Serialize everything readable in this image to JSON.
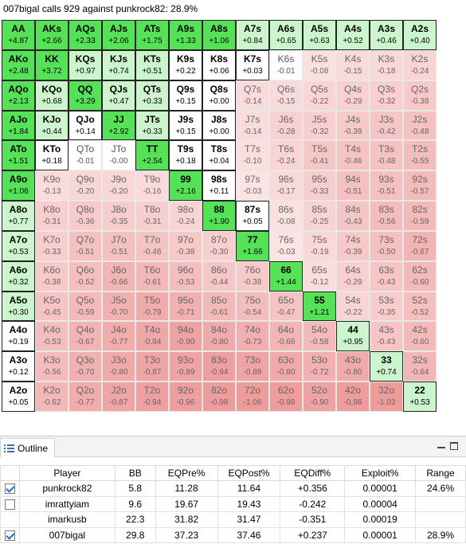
{
  "title": "007bigal calls 929 against punkrock82: 28.9%",
  "colors": {
    "plus_strong": "#56e256",
    "plus_light": "#cdf5cd",
    "neutral": "#ffffff",
    "minus_light": "#fce6e6",
    "minus_strong": "#ee9b9b"
  },
  "grid": [
    [
      [
        "AA",
        "+4.87"
      ],
      [
        "AKs",
        "+2.66"
      ],
      [
        "AQs",
        "+2.33"
      ],
      [
        "AJs",
        "+2.06"
      ],
      [
        "ATs",
        "+1.75"
      ],
      [
        "A9s",
        "+1.33"
      ],
      [
        "A8s",
        "+1.06"
      ],
      [
        "A7s",
        "+0.84"
      ],
      [
        "A6s",
        "+0.65"
      ],
      [
        "A5s",
        "+0.63"
      ],
      [
        "A4s",
        "+0.52"
      ],
      [
        "A3s",
        "+0.46"
      ],
      [
        "A2s",
        "+0.40"
      ]
    ],
    [
      [
        "AKo",
        "+2.48"
      ],
      [
        "KK",
        "+3.72"
      ],
      [
        "KQs",
        "+0.97"
      ],
      [
        "KJs",
        "+0.74"
      ],
      [
        "KTs",
        "+0.51"
      ],
      [
        "K9s",
        "+0.22"
      ],
      [
        "K8s",
        "+0.06"
      ],
      [
        "K7s",
        "+0.03"
      ],
      [
        "K6s",
        "-0.01"
      ],
      [
        "K5s",
        "-0.08"
      ],
      [
        "K4s",
        "-0.15"
      ],
      [
        "K3s",
        "-0.18"
      ],
      [
        "K2s",
        "-0.24"
      ]
    ],
    [
      [
        "AQo",
        "+2.13"
      ],
      [
        "KQo",
        "+0.68"
      ],
      [
        "QQ",
        "+3.29"
      ],
      [
        "QJs",
        "+0.47"
      ],
      [
        "QTs",
        "+0.33"
      ],
      [
        "Q9s",
        "+0.15"
      ],
      [
        "Q8s",
        "+0.00"
      ],
      [
        "Q7s",
        "-0.14"
      ],
      [
        "Q6s",
        "-0.15"
      ],
      [
        "Q5s",
        "-0.22"
      ],
      [
        "Q4s",
        "-0.29"
      ],
      [
        "Q3s",
        "-0.32"
      ],
      [
        "Q2s",
        "-0.38"
      ]
    ],
    [
      [
        "AJo",
        "+1.84"
      ],
      [
        "KJo",
        "+0.44"
      ],
      [
        "QJo",
        "+0.14"
      ],
      [
        "JJ",
        "+2.92"
      ],
      [
        "JTs",
        "+0.33"
      ],
      [
        "J9s",
        "+0.15"
      ],
      [
        "J8s",
        "+0.00"
      ],
      [
        "J7s",
        "-0.14"
      ],
      [
        "J6s",
        "-0.28"
      ],
      [
        "J5s",
        "-0.32"
      ],
      [
        "J4s",
        "-0.39"
      ],
      [
        "J3s",
        "-0.42"
      ],
      [
        "J2s",
        "-0.48"
      ]
    ],
    [
      [
        "ATo",
        "+1.51"
      ],
      [
        "KTo",
        "+0.18"
      ],
      [
        "QTo",
        "-0.01"
      ],
      [
        "JTo",
        "-0.00"
      ],
      [
        "TT",
        "+2.54"
      ],
      [
        "T9s",
        "+0.18"
      ],
      [
        "T8s",
        "+0.04"
      ],
      [
        "T7s",
        "-0.10"
      ],
      [
        "T6s",
        "-0.24"
      ],
      [
        "T5s",
        "-0.41"
      ],
      [
        "T4s",
        "-0.46"
      ],
      [
        "T3s",
        "-0.48"
      ],
      [
        "T2s",
        "-0.55"
      ]
    ],
    [
      [
        "A9o",
        "+1.06"
      ],
      [
        "K9o",
        "-0.13"
      ],
      [
        "Q9o",
        "-0.20"
      ],
      [
        "J9o",
        "-0.20"
      ],
      [
        "T9o",
        "-0.16"
      ],
      [
        "99",
        "+2.16"
      ],
      [
        "98s",
        "+0.11"
      ],
      [
        "97s",
        "-0.03"
      ],
      [
        "96s",
        "-0.17"
      ],
      [
        "95s",
        "-0.33"
      ],
      [
        "94s",
        "-0.51"
      ],
      [
        "93s",
        "-0.51"
      ],
      [
        "92s",
        "-0.57"
      ]
    ],
    [
      [
        "A8o",
        "+0.77"
      ],
      [
        "K8o",
        "-0.31"
      ],
      [
        "Q8o",
        "-0.36"
      ],
      [
        "J8o",
        "-0.35"
      ],
      [
        "T8o",
        "-0.31"
      ],
      [
        "98o",
        "-0.24"
      ],
      [
        "88",
        "+1.90"
      ],
      [
        "87s",
        "+0.05"
      ],
      [
        "86s",
        "-0.08"
      ],
      [
        "85s",
        "-0.25"
      ],
      [
        "84s",
        "-0.43"
      ],
      [
        "83s",
        "-0.56"
      ],
      [
        "82s",
        "-0.59"
      ]
    ],
    [
      [
        "A7o",
        "+0.53"
      ],
      [
        "K7o",
        "-0.33"
      ],
      [
        "Q7o",
        "-0.51"
      ],
      [
        "J7o",
        "-0.51"
      ],
      [
        "T7o",
        "-0.46"
      ],
      [
        "97o",
        "-0.38"
      ],
      [
        "87o",
        "-0.30"
      ],
      [
        "77",
        "+1.66"
      ],
      [
        "76s",
        "-0.03"
      ],
      [
        "75s",
        "-0.19"
      ],
      [
        "74s",
        "-0.39"
      ],
      [
        "73s",
        "-0.50"
      ],
      [
        "72s",
        "-0.67"
      ]
    ],
    [
      [
        "A6o",
        "+0.32"
      ],
      [
        "K6o",
        "-0.38"
      ],
      [
        "Q6o",
        "-0.52"
      ],
      [
        "J6o",
        "-0.66"
      ],
      [
        "T6o",
        "-0.61"
      ],
      [
        "96o",
        "-0.53"
      ],
      [
        "86o",
        "-0.44"
      ],
      [
        "76o",
        "-0.38"
      ],
      [
        "66",
        "+1.44"
      ],
      [
        "65s",
        "-0.12"
      ],
      [
        "64s",
        "-0.29"
      ],
      [
        "63s",
        "-0.43"
      ],
      [
        "62s",
        "-0.60"
      ]
    ],
    [
      [
        "A5o",
        "+0.30"
      ],
      [
        "K5o",
        "-0.45"
      ],
      [
        "Q5o",
        "-0.59"
      ],
      [
        "J5o",
        "-0.70"
      ],
      [
        "T5o",
        "-0.79"
      ],
      [
        "95o",
        "-0.71"
      ],
      [
        "85o",
        "-0.61"
      ],
      [
        "75o",
        "-0.54"
      ],
      [
        "65o",
        "-0.47"
      ],
      [
        "55",
        "+1.21"
      ],
      [
        "54s",
        "-0.22"
      ],
      [
        "53s",
        "-0.35"
      ],
      [
        "52s",
        "-0.52"
      ]
    ],
    [
      [
        "A4o",
        "+0.19"
      ],
      [
        "K4o",
        "-0.53"
      ],
      [
        "Q4o",
        "-0.67"
      ],
      [
        "J4o",
        "-0.77"
      ],
      [
        "T4o",
        "-0.84"
      ],
      [
        "94o",
        "-0.90"
      ],
      [
        "84o",
        "-0.80"
      ],
      [
        "74o",
        "-0.73"
      ],
      [
        "64o",
        "-0.66"
      ],
      [
        "54o",
        "-0.58"
      ],
      [
        "44",
        "+0.95"
      ],
      [
        "43s",
        "-0.43"
      ],
      [
        "42s",
        "-0.60"
      ]
    ],
    [
      [
        "A3o",
        "+0.12"
      ],
      [
        "K3o",
        "-0.56"
      ],
      [
        "Q3o",
        "-0.70"
      ],
      [
        "J3o",
        "-0.80"
      ],
      [
        "T3o",
        "-0.87"
      ],
      [
        "93o",
        "-0.89"
      ],
      [
        "83o",
        "-0.94"
      ],
      [
        "73o",
        "-0.88"
      ],
      [
        "63o",
        "-0.80"
      ],
      [
        "53o",
        "-0.72"
      ],
      [
        "43o",
        "-0.80"
      ],
      [
        "33",
        "+0.74"
      ],
      [
        "32s",
        "-0.64"
      ]
    ],
    [
      [
        "A2o",
        "+0.05"
      ],
      [
        "K2o",
        "-0.62"
      ],
      [
        "Q2o",
        "-0.77"
      ],
      [
        "J2o",
        "-0.87"
      ],
      [
        "T2o",
        "-0.94"
      ],
      [
        "92o",
        "-0.96"
      ],
      [
        "82o",
        "-0.98"
      ],
      [
        "72o",
        "-1.06"
      ],
      [
        "62o",
        "-0.98"
      ],
      [
        "52o",
        "-0.90"
      ],
      [
        "42o",
        "-0.98"
      ],
      [
        "32o",
        "-1.03"
      ],
      [
        "22",
        "+0.53"
      ]
    ]
  ],
  "outline": {
    "tab_label": "Outline",
    "columns": [
      "Player",
      "BB",
      "EQPre%",
      "EQPost%",
      "EQDiff%",
      "Exploit%",
      "Range"
    ],
    "rows": [
      {
        "checked": true,
        "player": "punkrock82",
        "bb": "5.8",
        "eqpre": "11.28",
        "eqpost": "11.64",
        "eqdiff": "+0.356",
        "exploit": "0.00001",
        "range": "24.6%"
      },
      {
        "checked": false,
        "player": "imrattyiam",
        "bb": "9.6",
        "eqpre": "19.67",
        "eqpost": "19.43",
        "eqdiff": "-0.242",
        "exploit": "0.00004",
        "range": ""
      },
      {
        "checked": null,
        "player": "imarkusb",
        "bb": "22.3",
        "eqpre": "31.82",
        "eqpost": "31.47",
        "eqdiff": "-0.351",
        "exploit": "0.00019",
        "range": ""
      },
      {
        "checked": true,
        "player": "007bigal",
        "bb": "29.8",
        "eqpre": "37.23",
        "eqpost": "37.46",
        "eqdiff": "+0.237",
        "exploit": "0.00001",
        "range": "28.9%"
      }
    ]
  }
}
